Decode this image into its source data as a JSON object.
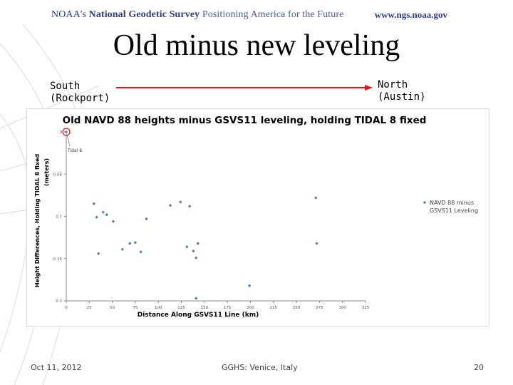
{
  "header": {
    "agency": "NOAA's",
    "agency_name": "National Geodetic Survey",
    "tagline": "Positioning America for the Future",
    "url": "www.ngs.noaa.gov"
  },
  "slide": {
    "title": "Old minus new leveling",
    "south_label": "South\n(Rockport)",
    "north_label": "North\n(Austin)"
  },
  "footer": {
    "date": "Oct 11, 2012",
    "conference": "GGHS:  Venice, Italy",
    "page": "20"
  },
  "colors": {
    "marker": "#4f81bd",
    "arrow": "#e3131b",
    "header_text": "#2f3f84",
    "annotation_circle": "#e3131b"
  },
  "chart_data": {
    "type": "scatter",
    "title": "Old NAVD 88 heights minus GSVS11 leveling, holding TIDAL 8 fixed",
    "xlabel": "Distance Along GSVS11 Line (km)",
    "ylabel": "Height Differences, Holding TIDAL 8 fixed",
    "ylabel_unit": "(meters)",
    "xlim": [
      0,
      325
    ],
    "ylim": [
      0.2,
      0
    ],
    "y_reversed": true,
    "x_ticks": [
      0,
      25,
      50,
      75,
      100,
      125,
      150,
      175,
      200,
      225,
      250,
      275,
      300,
      325
    ],
    "y_ticks": [
      0,
      0.05,
      0.1,
      0.15,
      0.2
    ],
    "y_tick_labels": [
      "0",
      "0.05",
      "0.1",
      "0.15",
      "0.2"
    ],
    "grid": false,
    "legend_position": "right",
    "series": [
      {
        "name": "NAVD 88 minus GSVS11 Leveling",
        "points": [
          {
            "x": 0,
            "y": 0.0
          },
          {
            "x": 30,
            "y": 0.085
          },
          {
            "x": 33,
            "y": 0.101
          },
          {
            "x": 35,
            "y": 0.144
          },
          {
            "x": 40,
            "y": 0.095
          },
          {
            "x": 44,
            "y": 0.098
          },
          {
            "x": 51,
            "y": 0.106
          },
          {
            "x": 61,
            "y": 0.139
          },
          {
            "x": 69,
            "y": 0.132
          },
          {
            "x": 75,
            "y": 0.131
          },
          {
            "x": 81,
            "y": 0.142
          },
          {
            "x": 87,
            "y": 0.103
          },
          {
            "x": 113,
            "y": 0.087
          },
          {
            "x": 124,
            "y": 0.083
          },
          {
            "x": 131,
            "y": 0.136
          },
          {
            "x": 134,
            "y": 0.088
          },
          {
            "x": 138,
            "y": 0.141
          },
          {
            "x": 141,
            "y": 0.149
          },
          {
            "x": 143,
            "y": 0.132
          },
          {
            "x": 141,
            "y": 0.197
          },
          {
            "x": 199,
            "y": 0.182
          },
          {
            "x": 271,
            "y": 0.078
          },
          {
            "x": 272,
            "y": 0.132
          }
        ]
      }
    ],
    "annotations": [
      {
        "text": "Tidal 8",
        "x": 0,
        "y": 0.0,
        "circled": true
      }
    ]
  }
}
